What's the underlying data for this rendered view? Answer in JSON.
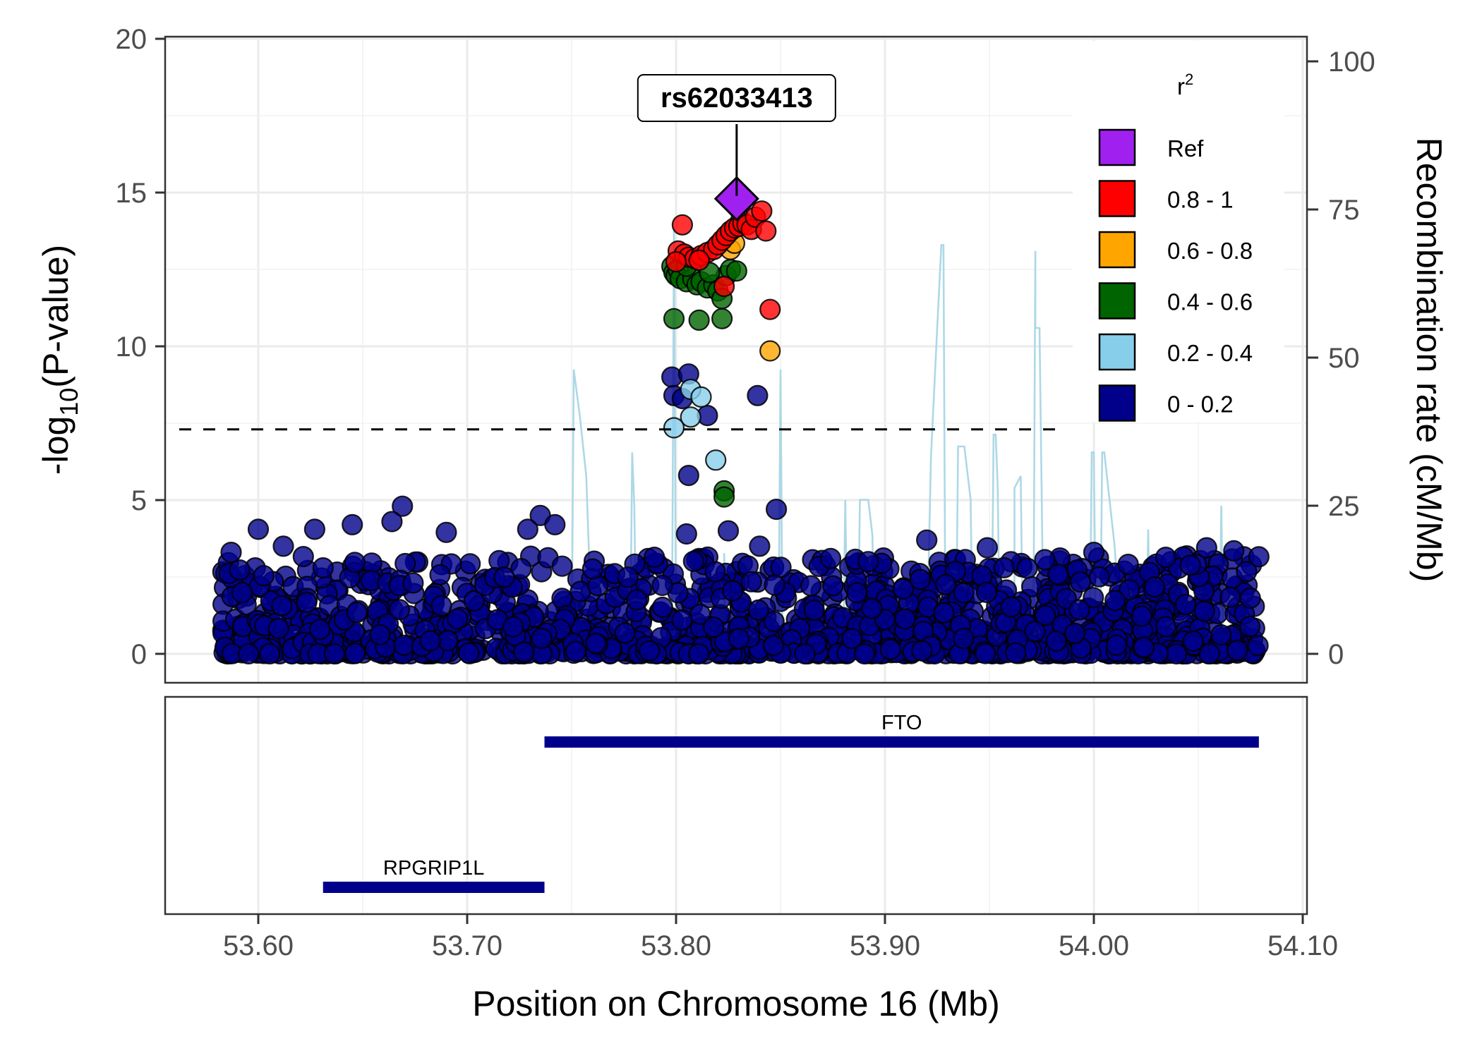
{
  "chart_data": {
    "type": "scatter",
    "title": "",
    "xlabel": "Position on Chromosome 16 (Mb)",
    "ylabel_prefix": "-log",
    "ylabel_sub": "10",
    "ylabel_suffix": "(P-value)",
    "y2label": "Recombination rate (cM/Mb)",
    "xlim": [
      53.555,
      54.105
    ],
    "ylim": [
      -0.9,
      20.2
    ],
    "y2lim": [
      -4.5,
      101
    ],
    "x_ticks": [
      53.6,
      53.7,
      53.8,
      53.9,
      54.0,
      54.1
    ],
    "x_tick_labels": [
      "53.60",
      "53.70",
      "53.80",
      "53.90",
      "54.00",
      "54.10"
    ],
    "y_ticks": [
      0,
      5,
      10,
      15,
      20
    ],
    "y_tick_labels": [
      "0",
      "5",
      "10",
      "15",
      "20"
    ],
    "y2_ticks": [
      0,
      25,
      50,
      75,
      100
    ],
    "y2_tick_labels": [
      "0",
      "25",
      "50",
      "75",
      "100"
    ],
    "grid": true,
    "significance_line": 7.3,
    "lead_snp": {
      "label": "rs62033413",
      "x": 53.829,
      "y": 14.8,
      "category": "Ref"
    },
    "legend": {
      "title_base": "r",
      "title_sup": "2",
      "placement": "top-right",
      "entries": [
        {
          "label": "Ref",
          "color": "#A020F0"
        },
        {
          "label": "0.8 - 1",
          "color": "#FF0000"
        },
        {
          "label": "0.6 - 0.8",
          "color": "#FFA500"
        },
        {
          "label": "0.4 - 0.6",
          "color": "#006400"
        },
        {
          "label": "0.2 - 0.4",
          "color": "#87CEEB"
        },
        {
          "label": "0 - 0.2",
          "color": "#00008B"
        }
      ]
    },
    "series": [
      {
        "name": "0.8 - 1",
        "color": "#FF0000",
        "points": [
          [
            53.803,
            13.95
          ],
          [
            53.801,
            13.1
          ],
          [
            53.804,
            13.0
          ],
          [
            53.806,
            12.9
          ],
          [
            53.809,
            12.85
          ],
          [
            53.812,
            12.95
          ],
          [
            53.815,
            13.05
          ],
          [
            53.818,
            13.15
          ],
          [
            53.82,
            13.3
          ],
          [
            53.822,
            13.45
          ],
          [
            53.824,
            13.6
          ],
          [
            53.826,
            13.75
          ],
          [
            53.828,
            13.85
          ],
          [
            53.83,
            13.9
          ],
          [
            53.832,
            14.0
          ],
          [
            53.834,
            13.95
          ],
          [
            53.836,
            13.8
          ],
          [
            53.838,
            14.2
          ],
          [
            53.841,
            14.4
          ],
          [
            53.843,
            13.75
          ],
          [
            53.823,
            11.95
          ],
          [
            53.845,
            11.2
          ],
          [
            53.8,
            12.75
          ],
          [
            53.811,
            12.8
          ]
        ]
      },
      {
        "name": "0.6 - 0.8",
        "color": "#FFA500",
        "points": [
          [
            53.826,
            13.15
          ],
          [
            53.828,
            13.35
          ],
          [
            53.831,
            14.1
          ],
          [
            53.845,
            9.85
          ]
        ]
      },
      {
        "name": "0.4 - 0.6",
        "color": "#006400",
        "points": [
          [
            53.798,
            12.6
          ],
          [
            53.799,
            12.4
          ],
          [
            53.8,
            12.3
          ],
          [
            53.801,
            12.5
          ],
          [
            53.802,
            12.2
          ],
          [
            53.805,
            12.1
          ],
          [
            53.808,
            12.2
          ],
          [
            53.81,
            12.0
          ],
          [
            53.812,
            12.1
          ],
          [
            53.815,
            11.9
          ],
          [
            53.818,
            12.0
          ],
          [
            53.82,
            11.8
          ],
          [
            53.822,
            11.55
          ],
          [
            53.824,
            12.3
          ],
          [
            53.826,
            12.5
          ],
          [
            53.829,
            12.45
          ],
          [
            53.799,
            10.9
          ],
          [
            53.811,
            10.85
          ],
          [
            53.822,
            10.9
          ],
          [
            53.823,
            5.3
          ],
          [
            53.823,
            5.1
          ],
          [
            53.805,
            12.6
          ],
          [
            53.816,
            12.4
          ]
        ]
      },
      {
        "name": "0.2 - 0.4",
        "color": "#87CEEB",
        "points": [
          [
            53.807,
            8.6
          ],
          [
            53.812,
            8.35
          ],
          [
            53.807,
            7.7
          ],
          [
            53.799,
            7.35
          ],
          [
            53.819,
            6.3
          ]
        ]
      },
      {
        "name": "0 - 0.2 (notable)",
        "color": "#00008B",
        "points": [
          [
            53.798,
            9.0
          ],
          [
            53.806,
            9.1
          ],
          [
            53.799,
            8.4
          ],
          [
            53.803,
            8.3
          ],
          [
            53.815,
            7.75
          ],
          [
            53.839,
            8.4
          ],
          [
            53.806,
            5.8
          ],
          [
            53.848,
            4.7
          ],
          [
            53.669,
            4.8
          ],
          [
            53.664,
            4.3
          ],
          [
            53.645,
            4.2
          ],
          [
            53.6,
            4.05
          ],
          [
            53.627,
            4.05
          ],
          [
            53.69,
            3.95
          ],
          [
            53.735,
            4.5
          ],
          [
            53.742,
            4.2
          ],
          [
            53.729,
            4.05
          ],
          [
            53.949,
            3.45
          ],
          [
            54.054,
            3.45
          ],
          [
            54.067,
            3.35
          ],
          [
            54.0,
            3.3
          ],
          [
            53.92,
            3.7
          ],
          [
            53.874,
            3.1
          ],
          [
            53.892,
            3.0
          ],
          [
            53.957,
            2.8
          ],
          [
            53.805,
            3.9
          ],
          [
            53.825,
            4.0
          ],
          [
            53.84,
            3.5
          ],
          [
            53.587,
            3.3
          ],
          [
            53.612,
            3.5
          ]
        ]
      }
    ],
    "background_cloud": {
      "category": "0 - 0.2",
      "color": "#00008B",
      "x_range": [
        53.583,
        54.079
      ],
      "y_range": [
        0,
        3.2
      ],
      "count": 1400,
      "seed": 7
    },
    "recombination": {
      "color": "#ADD8E6",
      "points": [
        [
          53.75,
          0
        ],
        [
          53.751,
          48
        ],
        [
          53.754,
          40
        ],
        [
          53.757,
          30
        ],
        [
          53.76,
          0
        ],
        [
          53.778,
          0
        ],
        [
          53.779,
          34
        ],
        [
          53.78,
          25
        ],
        [
          53.781,
          0
        ],
        [
          53.798,
          0
        ],
        [
          53.799,
          72
        ],
        [
          53.8,
          0
        ],
        [
          53.823,
          0
        ],
        [
          53.823,
          17
        ],
        [
          53.824,
          0
        ],
        [
          53.849,
          0
        ],
        [
          53.85,
          48
        ],
        [
          53.851,
          0
        ],
        [
          53.88,
          0
        ],
        [
          53.881,
          26
        ],
        [
          53.882,
          0
        ],
        [
          53.887,
          0
        ],
        [
          53.888,
          26
        ],
        [
          53.892,
          26
        ],
        [
          53.894,
          20
        ],
        [
          53.895,
          0
        ],
        [
          53.92,
          0
        ],
        [
          53.922,
          33
        ],
        [
          53.925,
          55
        ],
        [
          53.927,
          69
        ],
        [
          53.928,
          69
        ],
        [
          53.929,
          0
        ],
        [
          53.934,
          0
        ],
        [
          53.935,
          35
        ],
        [
          53.938,
          35
        ],
        [
          53.941,
          26
        ],
        [
          53.942,
          0
        ],
        [
          53.951,
          0
        ],
        [
          53.952,
          37
        ],
        [
          53.953,
          37
        ],
        [
          53.954,
          28
        ],
        [
          53.955,
          0
        ],
        [
          53.962,
          0
        ],
        [
          53.962,
          28
        ],
        [
          53.965,
          30
        ],
        [
          53.966,
          0
        ],
        [
          53.971,
          0
        ],
        [
          53.972,
          68
        ],
        [
          53.972,
          55
        ],
        [
          53.974,
          55
        ],
        [
          53.976,
          0
        ],
        [
          53.998,
          0
        ],
        [
          53.999,
          34
        ],
        [
          54.0,
          34
        ],
        [
          54.001,
          0
        ],
        [
          54.003,
          0
        ],
        [
          54.004,
          34
        ],
        [
          54.005,
          34
        ],
        [
          54.01,
          18
        ],
        [
          54.013,
          0
        ],
        [
          54.025,
          0
        ],
        [
          54.026,
          21
        ],
        [
          54.027,
          0
        ],
        [
          54.06,
          0
        ],
        [
          54.061,
          25
        ],
        [
          54.062,
          0
        ],
        [
          54.068,
          0
        ],
        [
          54.069,
          11
        ],
        [
          54.07,
          0
        ]
      ]
    },
    "genes": [
      {
        "name": "FTO",
        "start": 53.737,
        "end": 54.079,
        "row": 0
      },
      {
        "name": "RPGRIP1L",
        "start": 53.631,
        "end": 53.737,
        "row": 1
      }
    ]
  }
}
